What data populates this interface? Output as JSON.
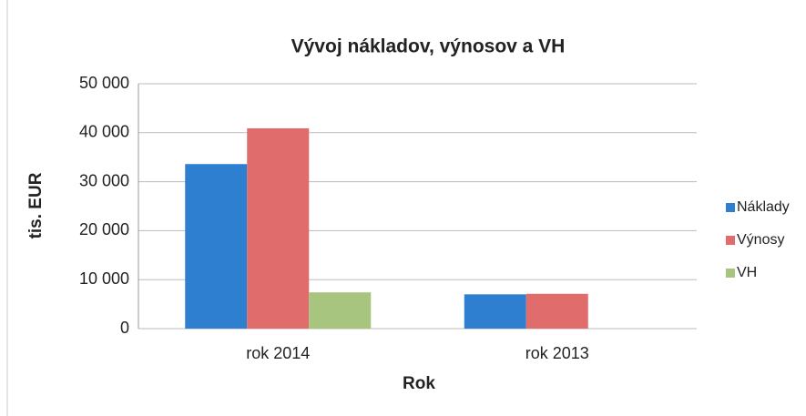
{
  "chart_data": {
    "type": "bar",
    "title": "Vývoj nákladov, výnosov a VH",
    "xlabel": "Rok",
    "ylabel": "tis. EUR",
    "categories": [
      "rok 2014",
      "rok 2013"
    ],
    "series": [
      {
        "name": "Náklady",
        "color": "#2f7fd0",
        "values": [
          33600,
          7000
        ]
      },
      {
        "name": "Výnosy",
        "color": "#e06c6c",
        "values": [
          40900,
          7100
        ]
      },
      {
        "name": "VH",
        "color": "#a7c57e",
        "values": [
          7400,
          0
        ]
      }
    ],
    "ylim": [
      0,
      50000
    ],
    "yticks": [
      0,
      {
        "value": 10000,
        "label": "10 000"
      },
      {
        "value": 20000,
        "label": "20 000"
      },
      {
        "value": 30000,
        "label": "30 000"
      },
      {
        "value": 40000,
        "label": "40 000"
      },
      {
        "value": 50000,
        "label": "50 000"
      }
    ],
    "grid": true,
    "legend": "right"
  }
}
